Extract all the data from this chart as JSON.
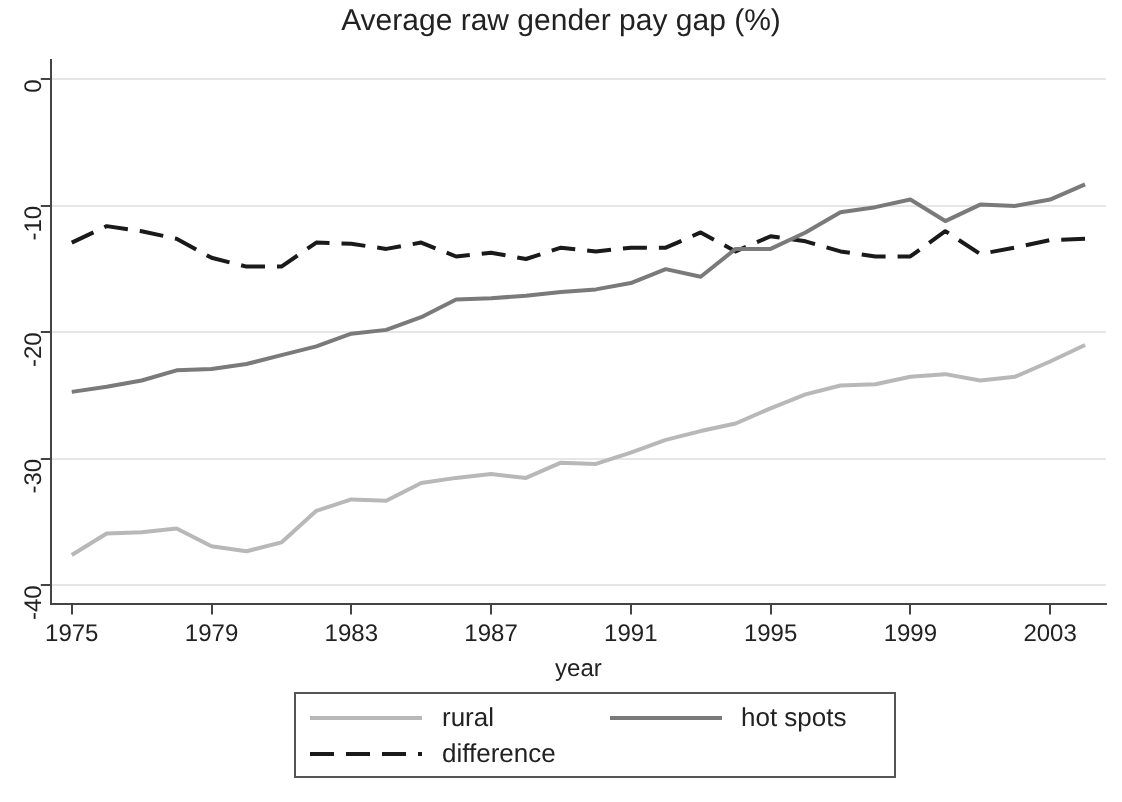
{
  "chart_data": {
    "type": "line",
    "title": "Average raw gender pay gap (%)",
    "xlabel": "year",
    "x": [
      1975,
      1976,
      1977,
      1978,
      1979,
      1980,
      1981,
      1982,
      1983,
      1984,
      1985,
      1986,
      1987,
      1988,
      1989,
      1990,
      1991,
      1992,
      1993,
      1994,
      1995,
      1996,
      1997,
      1998,
      1999,
      2000,
      2001,
      2002,
      2003,
      2004
    ],
    "series": [
      {
        "name": "rural",
        "color": "#b8b8b8",
        "line_style": "solid",
        "values": [
          -37.6,
          -35.9,
          -35.8,
          -35.5,
          -36.9,
          -37.3,
          -36.6,
          -34.1,
          -33.2,
          -33.3,
          -31.9,
          -31.5,
          -31.2,
          -31.5,
          -30.3,
          -30.4,
          -29.5,
          -28.5,
          -27.8,
          -27.2,
          -26,
          -24.9,
          -24.2,
          -24.1,
          -23.5,
          -23.3,
          -23.8,
          -23.5,
          -22.3,
          -21
        ]
      },
      {
        "name": "hot spots",
        "color": "#7a7a7a",
        "line_style": "solid",
        "values": [
          -24.7,
          -24.3,
          -23.8,
          -23,
          -22.9,
          -22.5,
          -21.8,
          -21.1,
          -20.1,
          -19.8,
          -18.8,
          -17.4,
          -17.3,
          -17.1,
          -16.8,
          -16.6,
          -16.1,
          -15,
          -15.6,
          -13.4,
          -13.4,
          -12.1,
          -10.5,
          -10.1,
          -9.5,
          -11.2,
          -9.9,
          -10,
          -9.5,
          -8.3
        ]
      },
      {
        "name": "difference",
        "color": "#1a1a1a",
        "line_style": "dashed",
        "values": [
          -12.9,
          -11.6,
          -12,
          -12.6,
          -14.1,
          -14.8,
          -14.8,
          -12.9,
          -13,
          -13.4,
          -12.9,
          -14,
          -13.7,
          -14.2,
          -13.3,
          -13.6,
          -13.3,
          -13.3,
          -12.1,
          -13.6,
          -12.4,
          -12.8,
          -13.6,
          -14,
          -14,
          -12,
          -13.8,
          -13.3,
          -12.7,
          -12.6
        ]
      }
    ],
    "xlim": [
      1974.4,
      2004.6
    ],
    "xticks": [
      1975,
      1979,
      1983,
      1987,
      1991,
      1995,
      1999,
      2003
    ],
    "ylim": [
      -41.5,
      1.5
    ],
    "yticks": [
      -40,
      -30,
      -20,
      -10,
      0
    ],
    "grid": "y",
    "legend": "bottom",
    "marker": "none"
  }
}
